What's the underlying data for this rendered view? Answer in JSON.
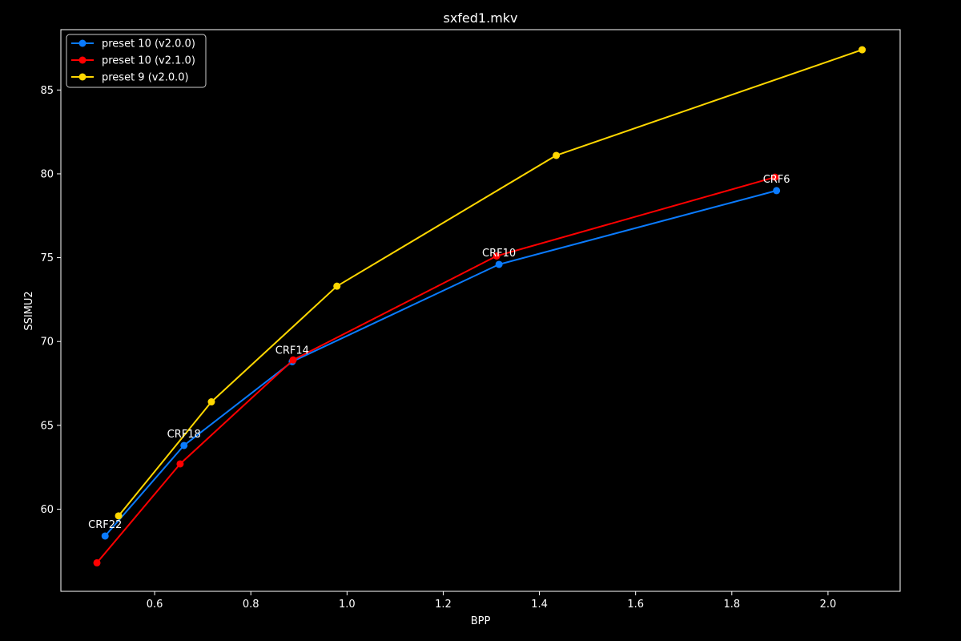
{
  "chart_data": {
    "type": "line",
    "title": "sxfed1.mkv",
    "xlabel": "BPP",
    "ylabel": "SSIMU2",
    "xlim": [
      0.405,
      2.15
    ],
    "ylim": [
      55.1,
      88.6
    ],
    "xticks": [
      0.6,
      0.8,
      1.0,
      1.2,
      1.4,
      1.6,
      1.8,
      2.0
    ],
    "xtick_labels": [
      "0.6",
      "0.8",
      "1.0",
      "1.2",
      "1.4",
      "1.6",
      "1.8",
      "2.0"
    ],
    "yticks": [
      60,
      65,
      70,
      75,
      80,
      85
    ],
    "ytick_labels": [
      "60",
      "65",
      "70",
      "75",
      "80",
      "85"
    ],
    "grid": false,
    "legend_position": "top-left",
    "series": [
      {
        "name": "preset 10 (v2.0.0)",
        "color": "#0a7bff",
        "x": [
          0.497,
          0.661,
          0.886,
          1.316,
          1.893
        ],
        "y": [
          58.4,
          63.8,
          68.8,
          74.6,
          79.0
        ]
      },
      {
        "name": "preset 10 (v2.1.0)",
        "color": "#ff0000",
        "x": [
          0.48,
          0.653,
          0.888,
          1.311,
          1.89
        ],
        "y": [
          56.8,
          62.7,
          68.9,
          75.1,
          79.8
        ]
      },
      {
        "name": "preset 9 (v2.0.0)",
        "color": "#ffd700",
        "x": [
          0.525,
          0.718,
          0.979,
          1.435,
          2.071
        ],
        "y": [
          59.6,
          66.4,
          73.3,
          81.1,
          87.4
        ]
      }
    ],
    "annotations": [
      {
        "text": "CRF22",
        "x": 0.497,
        "y": 58.4
      },
      {
        "text": "CRF18",
        "x": 0.661,
        "y": 63.8
      },
      {
        "text": "CRF14",
        "x": 0.886,
        "y": 68.8
      },
      {
        "text": "CRF10",
        "x": 1.316,
        "y": 74.6
      },
      {
        "text": "CRF6",
        "x": 1.893,
        "y": 79.0
      }
    ]
  }
}
